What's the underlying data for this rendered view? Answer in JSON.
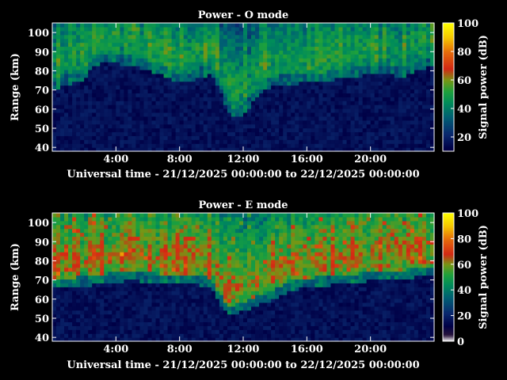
{
  "chart_data": [
    {
      "type": "heatmap",
      "title": "Power - O mode",
      "xlabel": "Universal time - 21/12/2025 00:00:00 to 22/12/2025 00:00:00",
      "ylabel": "Range (km)",
      "colorbar_label": "Signal power (dB)",
      "x_ticks": [
        "4:00",
        "8:00",
        "12:00",
        "16:00",
        "20:00"
      ],
      "x_tick_hours": [
        4,
        8,
        12,
        16,
        20
      ],
      "y_ticks": [
        40,
        50,
        60,
        70,
        80,
        90,
        100
      ],
      "xlim_hours": [
        0,
        24
      ],
      "ylim": [
        38,
        105
      ],
      "colorbar_ticks": [
        20,
        40,
        60,
        80,
        100
      ],
      "colorbar_range": [
        10,
        100
      ],
      "boundary_km": [
        [
          0.0,
          72
        ],
        [
          0.8,
          75
        ],
        [
          1.5,
          76
        ],
        [
          2.0,
          78
        ],
        [
          2.5,
          84
        ],
        [
          3.0,
          86
        ],
        [
          4.0,
          86
        ],
        [
          5.0,
          85
        ],
        [
          6.0,
          82
        ],
        [
          7.0,
          80
        ],
        [
          8.0,
          76
        ],
        [
          8.5,
          76
        ],
        [
          9.0,
          78
        ],
        [
          10.0,
          80
        ],
        [
          10.5,
          72
        ],
        [
          11.0,
          62
        ],
        [
          11.5,
          57
        ],
        [
          12.0,
          60
        ],
        [
          12.5,
          64
        ],
        [
          13.0,
          70
        ],
        [
          13.5,
          73
        ],
        [
          14.0,
          74
        ],
        [
          14.5,
          75
        ],
        [
          15.0,
          75
        ],
        [
          16.0,
          76
        ],
        [
          17.0,
          76
        ],
        [
          18.0,
          78
        ],
        [
          19.0,
          79
        ],
        [
          20.0,
          80
        ],
        [
          21.0,
          80
        ],
        [
          22.0,
          79
        ],
        [
          22.8,
          82
        ],
        [
          24.0,
          85
        ]
      ]
    },
    {
      "type": "heatmap",
      "title": "Power - E mode",
      "xlabel": "Universal time - 21/12/2025 00:00:00 to 22/12/2025 00:00:00",
      "ylabel": "Range (km)",
      "colorbar_label": "Signal power (dB)",
      "x_ticks": [
        "4:00",
        "8:00",
        "12:00",
        "16:00",
        "20:00"
      ],
      "x_tick_hours": [
        4,
        8,
        12,
        16,
        20
      ],
      "y_ticks": [
        40,
        50,
        60,
        70,
        80,
        90,
        100
      ],
      "xlim_hours": [
        0,
        24
      ],
      "ylim": [
        38,
        105
      ],
      "colorbar_ticks": [
        0,
        20,
        40,
        60,
        80,
        100
      ],
      "colorbar_range": [
        0,
        100
      ],
      "boundary_km": [
        [
          0.0,
          68
        ],
        [
          1.0,
          68
        ],
        [
          2.0,
          69
        ],
        [
          3.0,
          70
        ],
        [
          4.0,
          71
        ],
        [
          5.0,
          72
        ],
        [
          6.0,
          71
        ],
        [
          7.0,
          70
        ],
        [
          8.0,
          70
        ],
        [
          9.0,
          70
        ],
        [
          10.0,
          68
        ],
        [
          10.5,
          60
        ],
        [
          11.0,
          54
        ],
        [
          11.5,
          54
        ],
        [
          12.0,
          56
        ],
        [
          12.5,
          57
        ],
        [
          13.0,
          59
        ],
        [
          14.0,
          62
        ],
        [
          15.0,
          67
        ],
        [
          16.0,
          68
        ],
        [
          17.0,
          69
        ],
        [
          18.0,
          70
        ],
        [
          19.0,
          70
        ],
        [
          20.0,
          72
        ],
        [
          21.0,
          72
        ],
        [
          22.0,
          72
        ],
        [
          23.0,
          74
        ],
        [
          24.0,
          74
        ]
      ]
    }
  ]
}
